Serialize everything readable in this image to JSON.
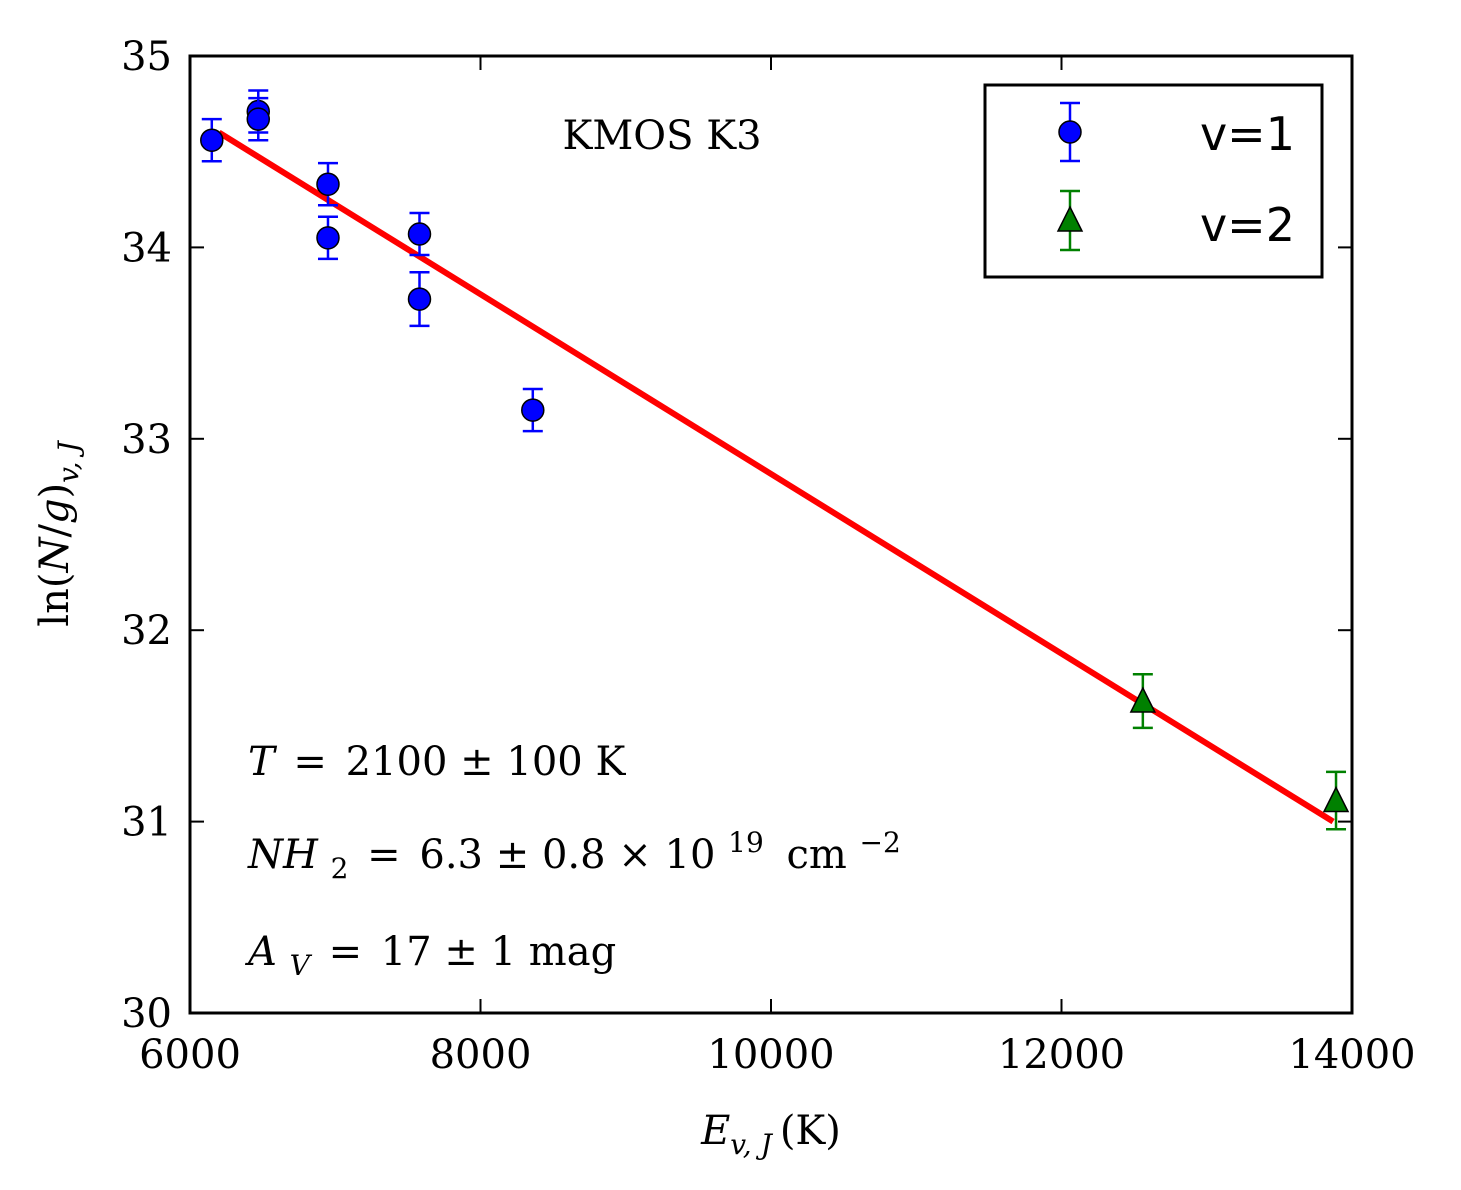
{
  "chart_data": {
    "type": "scatter",
    "title": "KMOS K3",
    "xlabel": "E_{v,J} (K)",
    "ylabel": "ln(N/g)_{v,J}",
    "xlim": [
      6000,
      14000
    ],
    "ylim": [
      30,
      35
    ],
    "xticks": [
      "6000",
      "8000",
      "10000",
      "12000",
      "14000"
    ],
    "yticks": [
      "30",
      "31",
      "32",
      "33",
      "34",
      "35"
    ],
    "grid": false,
    "legend_position": "top-right",
    "series": [
      {
        "name": "v=1",
        "marker": "circle",
        "color": "#0000ff",
        "points": [
          {
            "x": 6150,
            "y": 34.56,
            "err": 0.11
          },
          {
            "x": 6470,
            "y": 34.71,
            "err": 0.11
          },
          {
            "x": 6470,
            "y": 34.67,
            "err": 0.11
          },
          {
            "x": 6950,
            "y": 34.33,
            "err": 0.11
          },
          {
            "x": 6950,
            "y": 34.05,
            "err": 0.11
          },
          {
            "x": 7580,
            "y": 34.07,
            "err": 0.11
          },
          {
            "x": 7580,
            "y": 33.73,
            "err": 0.14
          },
          {
            "x": 8360,
            "y": 33.15,
            "err": 0.11
          }
        ]
      },
      {
        "name": "v=2",
        "marker": "triangle",
        "color": "#008000",
        "points": [
          {
            "x": 12560,
            "y": 31.63,
            "err": 0.14
          },
          {
            "x": 13890,
            "y": 31.11,
            "err": 0.15
          }
        ]
      }
    ],
    "fit_line": {
      "color": "#ff0000",
      "x": [
        6200,
        13870
      ],
      "y": [
        34.6,
        31.0
      ]
    },
    "annotations": {
      "temperature": {
        "lhs": "T",
        "rhs": "2100 ± 100 K"
      },
      "column_density": {
        "lhs": "NH",
        "subscript": "2",
        "rhs": "6.3 ± 0.8 × 10",
        "exponent": "19",
        "unit": "cm",
        "unit_exponent": "−2"
      },
      "extinction": {
        "lhs": "A",
        "subscript": "V",
        "rhs": "17 ± 1 mag"
      }
    }
  }
}
